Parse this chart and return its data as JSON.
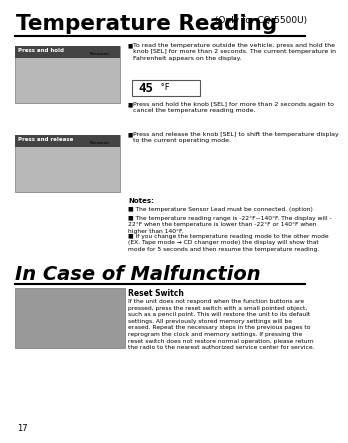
{
  "bg_color": "#ffffff",
  "title_text": "Temperature Reading",
  "title_suffix": " (Only for CQ-5500U)",
  "section2_title": "In Case of Malfunction",
  "section2_subtitle": "Reset Switch",
  "page_number": "17",
  "bullet1_text": "To read the temperature outside the vehicle, press and hold the\nknob [SEL] for more than 2 seconds. The current temperature in\nFahrenheit appears on the display.",
  "bullet2_text": "Press and hold the knob [SEL] for more than 2 seconds again to\ncancel the temperature reading mode.",
  "bullet3_text": "Press and release the knob [SEL] to shift the temperature display\nto the current operating mode.",
  "notes_header": "Notes:",
  "note1": "The temperature Sensor Lead must be connected. (option)",
  "note2": "The temperature reading range is -22°F~140°F. The display will -\n22°F when the temperature is lower than -22°F or 140°F when\nhigher than 140°F.",
  "note3": "If you change the temperature reading mode to the other mode\n(EX. Tape mode → CD changer mode) the display will show that\nmode for 5 seconds and then resume the temperature reading.",
  "reset_text": "If the unit does not respond when the function buttons are\npressed, press the reset switch with a small pointed object,\nsuch as a pencil point. This will restore the unit to its default\nsettings. All previously stored memory settings will be\nerased. Repeat the necessary steps in the previous pages to\nreprogram the clock and memory settings. If pressing the\nreset switch does not restore normal operation, please return\nthe radio to the nearest authorized service center for service.",
  "temp_display_num": "45",
  "temp_display_unit": " °F"
}
